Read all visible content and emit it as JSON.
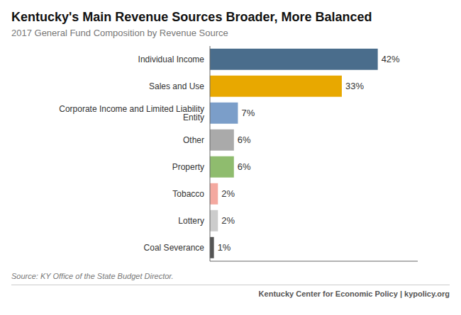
{
  "chart_data": {
    "type": "bar",
    "orientation": "horizontal",
    "title": "Kentucky's Main Revenue Sources Broader, More Balanced",
    "subtitle": "2017 General Fund Composition by Revenue Source",
    "categories": [
      "Individual Income",
      "Sales and Use",
      "Corporate Income and Limited Liability Entity",
      "Other",
      "Property",
      "Tobacco",
      "Lottery",
      "Coal Severance"
    ],
    "values": [
      42,
      33,
      7,
      6,
      6,
      2,
      2,
      1
    ],
    "value_labels": [
      "42%",
      "33%",
      "7%",
      "6%",
      "6%",
      "2%",
      "2%",
      "1%"
    ],
    "colors": [
      "#4a6d8c",
      "#e8a800",
      "#7b9ec9",
      "#aaaaaa",
      "#8fbc6e",
      "#f4a9a0",
      "#cccccc",
      "#555555"
    ],
    "xlim": [
      0,
      52
    ],
    "data_labels": true,
    "tick_labels": "y",
    "grid": false,
    "annotations": [
      "Source: KY Office of the State Budget Director.",
      "Kentucky Center for Economic Policy | kypolicy.org"
    ]
  }
}
